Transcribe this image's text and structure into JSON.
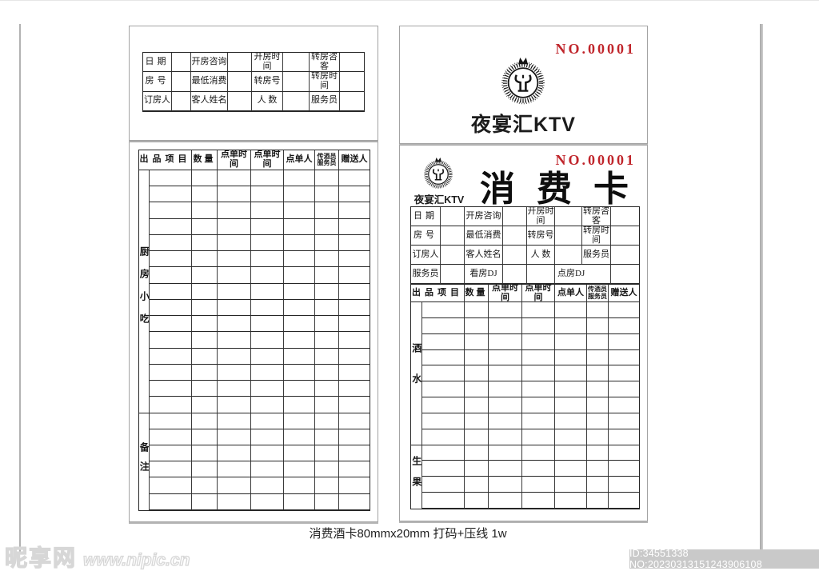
{
  "brand": {
    "name": "夜宴汇KTV",
    "serial": "NO.00001",
    "card_title": "消 费 卡"
  },
  "info_rows": [
    [
      "日期",
      "开房咨询",
      "开房时间",
      "转房咨客"
    ],
    [
      "房号",
      "最低消费",
      "转房号",
      "转房时间"
    ],
    [
      "订房人",
      "客人姓名",
      "人  数",
      "服务员"
    ]
  ],
  "dj_row": [
    "服务员",
    "看房DJ",
    "点房DJ"
  ],
  "order_headers": [
    "出品项目",
    "数量",
    "点单时间",
    "点单时间",
    "点单人",
    "传酒员\n服务员",
    "赠送人"
  ],
  "left_card": {
    "sections": [
      {
        "label": "厨房小吃",
        "rows": 15
      },
      {
        "label": "备注",
        "rows": 6
      }
    ]
  },
  "right_card": {
    "sections": [
      {
        "label": "酒水",
        "rows": 9
      },
      {
        "label": "生果",
        "rows": 4
      }
    ]
  },
  "footer": {
    "caption": "消费酒卡80mmx20mm  打码+压线 1w"
  },
  "watermark": {
    "site_name": "昵享网",
    "site_url": "www.nipic.cn"
  },
  "id_bar": {
    "text": "ID:34551338 NO:20230313151243906108"
  },
  "colors": {
    "serial_red": "#c0252b",
    "table_line": "#262626",
    "panel_border": "#a3a3a3",
    "id_bar_bg": "#c9c9c9"
  }
}
